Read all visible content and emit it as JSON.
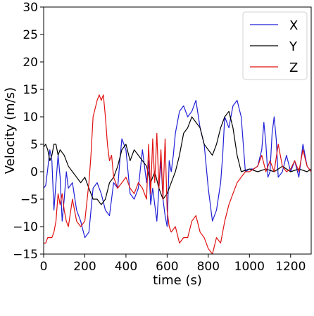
{
  "chart_data": {
    "type": "line",
    "xlabel": "time (s)",
    "ylabel": "Velocity (m/s)",
    "xlim": [
      0,
      1300
    ],
    "ylim": [
      -15,
      30
    ],
    "xticks": [
      0,
      200,
      400,
      600,
      800,
      1000,
      1200
    ],
    "yticks": [
      -15,
      -10,
      -5,
      0,
      5,
      10,
      15,
      20,
      25,
      30
    ],
    "legend_position": "top-right",
    "grid": false,
    "series": [
      {
        "name": "X",
        "color": "#1f1fd6",
        "points": [
          [
            0,
            -3
          ],
          [
            10,
            -2.5
          ],
          [
            20,
            0.5
          ],
          [
            30,
            4
          ],
          [
            40,
            2
          ],
          [
            50,
            -7
          ],
          [
            60,
            -2
          ],
          [
            70,
            3
          ],
          [
            80,
            -1
          ],
          [
            90,
            -9
          ],
          [
            100,
            -5
          ],
          [
            110,
            0
          ],
          [
            120,
            -3
          ],
          [
            140,
            -2
          ],
          [
            160,
            -7
          ],
          [
            180,
            -9
          ],
          [
            200,
            -12
          ],
          [
            220,
            -11
          ],
          [
            240,
            -3
          ],
          [
            260,
            -2
          ],
          [
            280,
            -4
          ],
          [
            300,
            -7
          ],
          [
            320,
            -8
          ],
          [
            340,
            -2
          ],
          [
            360,
            -3
          ],
          [
            370,
            2
          ],
          [
            380,
            6
          ],
          [
            400,
            4
          ],
          [
            420,
            -4
          ],
          [
            440,
            -5
          ],
          [
            460,
            -3
          ],
          [
            480,
            4
          ],
          [
            500,
            -2
          ],
          [
            510,
            2
          ],
          [
            520,
            -6
          ],
          [
            530,
            -3
          ],
          [
            540,
            -6
          ],
          [
            550,
            -9
          ],
          [
            560,
            -3
          ],
          [
            570,
            2
          ],
          [
            580,
            -5
          ],
          [
            590,
            -8
          ],
          [
            600,
            -10
          ],
          [
            610,
            2
          ],
          [
            620,
            0
          ],
          [
            630,
            3
          ],
          [
            640,
            7
          ],
          [
            660,
            11
          ],
          [
            680,
            12
          ],
          [
            700,
            10
          ],
          [
            720,
            11
          ],
          [
            740,
            13
          ],
          [
            760,
            8
          ],
          [
            780,
            5
          ],
          [
            800,
            -3
          ],
          [
            820,
            -9
          ],
          [
            840,
            -7
          ],
          [
            860,
            -2
          ],
          [
            870,
            3
          ],
          [
            880,
            10
          ],
          [
            900,
            8
          ],
          [
            920,
            12
          ],
          [
            940,
            13
          ],
          [
            960,
            10
          ],
          [
            980,
            0
          ],
          [
            1000,
            0.5
          ],
          [
            1020,
            0.5
          ],
          [
            1040,
            1
          ],
          [
            1060,
            4
          ],
          [
            1070,
            9
          ],
          [
            1080,
            5
          ],
          [
            1090,
            -1
          ],
          [
            1100,
            0
          ],
          [
            1110,
            7
          ],
          [
            1120,
            10
          ],
          [
            1130,
            6
          ],
          [
            1140,
            -1
          ],
          [
            1160,
            0
          ],
          [
            1180,
            3
          ],
          [
            1200,
            0
          ],
          [
            1220,
            2
          ],
          [
            1240,
            -1
          ],
          [
            1260,
            5
          ],
          [
            1280,
            1
          ],
          [
            1300,
            0
          ]
        ]
      },
      {
        "name": "Y",
        "color": "#000000",
        "points": [
          [
            0,
            4.5
          ],
          [
            10,
            5
          ],
          [
            20,
            4
          ],
          [
            30,
            2
          ],
          [
            40,
            3
          ],
          [
            50,
            5
          ],
          [
            60,
            5
          ],
          [
            70,
            3
          ],
          [
            80,
            4
          ],
          [
            100,
            3
          ],
          [
            120,
            1
          ],
          [
            140,
            0
          ],
          [
            160,
            -1
          ],
          [
            180,
            -2
          ],
          [
            200,
            -1
          ],
          [
            220,
            -3
          ],
          [
            240,
            -5
          ],
          [
            260,
            -5
          ],
          [
            280,
            -6
          ],
          [
            300,
            -5
          ],
          [
            320,
            -2
          ],
          [
            340,
            -1
          ],
          [
            360,
            1
          ],
          [
            380,
            4
          ],
          [
            400,
            5
          ],
          [
            420,
            2
          ],
          [
            440,
            4
          ],
          [
            460,
            3
          ],
          [
            480,
            2
          ],
          [
            500,
            1
          ],
          [
            520,
            -2
          ],
          [
            540,
            0
          ],
          [
            560,
            -3
          ],
          [
            580,
            -5
          ],
          [
            600,
            -4
          ],
          [
            620,
            -2
          ],
          [
            640,
            0
          ],
          [
            660,
            3
          ],
          [
            680,
            7
          ],
          [
            700,
            8
          ],
          [
            720,
            10
          ],
          [
            740,
            9
          ],
          [
            760,
            8
          ],
          [
            780,
            5
          ],
          [
            800,
            4
          ],
          [
            820,
            3
          ],
          [
            840,
            5
          ],
          [
            860,
            8
          ],
          [
            880,
            10
          ],
          [
            900,
            11
          ],
          [
            920,
            8
          ],
          [
            940,
            3
          ],
          [
            960,
            0
          ],
          [
            1000,
            0.5
          ],
          [
            1040,
            0
          ],
          [
            1080,
            0.5
          ],
          [
            1120,
            0
          ],
          [
            1160,
            1
          ],
          [
            1200,
            0
          ],
          [
            1240,
            0.5
          ],
          [
            1280,
            0
          ],
          [
            1300,
            0.5
          ]
        ]
      },
      {
        "name": "Z",
        "color": "#e01010",
        "points": [
          [
            0,
            -13
          ],
          [
            10,
            -13
          ],
          [
            20,
            -12
          ],
          [
            40,
            -12
          ],
          [
            50,
            -11
          ],
          [
            60,
            -9
          ],
          [
            70,
            -4
          ],
          [
            80,
            -6
          ],
          [
            90,
            -4
          ],
          [
            100,
            -7
          ],
          [
            110,
            -9
          ],
          [
            120,
            -10
          ],
          [
            140,
            -5
          ],
          [
            160,
            -9
          ],
          [
            180,
            -10
          ],
          [
            200,
            -9
          ],
          [
            220,
            -2
          ],
          [
            230,
            3
          ],
          [
            240,
            10
          ],
          [
            260,
            13
          ],
          [
            270,
            14
          ],
          [
            280,
            13
          ],
          [
            290,
            14
          ],
          [
            300,
            10
          ],
          [
            310,
            5
          ],
          [
            320,
            2
          ],
          [
            330,
            3
          ],
          [
            340,
            -1
          ],
          [
            360,
            -3
          ],
          [
            380,
            -2
          ],
          [
            400,
            -1
          ],
          [
            420,
            -3
          ],
          [
            440,
            -4
          ],
          [
            460,
            -2
          ],
          [
            480,
            -3
          ],
          [
            500,
            -5
          ],
          [
            510,
            5
          ],
          [
            520,
            -4
          ],
          [
            530,
            6
          ],
          [
            540,
            -2
          ],
          [
            550,
            7
          ],
          [
            560,
            -3
          ],
          [
            570,
            4
          ],
          [
            580,
            -5
          ],
          [
            590,
            6
          ],
          [
            600,
            -7
          ],
          [
            610,
            -10
          ],
          [
            620,
            -11
          ],
          [
            640,
            -10
          ],
          [
            660,
            -13
          ],
          [
            680,
            -12
          ],
          [
            700,
            -12
          ],
          [
            720,
            -9
          ],
          [
            740,
            -8
          ],
          [
            760,
            -11
          ],
          [
            780,
            -12
          ],
          [
            800,
            -14
          ],
          [
            820,
            -15
          ],
          [
            840,
            -12
          ],
          [
            860,
            -13
          ],
          [
            880,
            -9
          ],
          [
            900,
            -6
          ],
          [
            920,
            -4
          ],
          [
            940,
            -2
          ],
          [
            960,
            -1
          ],
          [
            980,
            0
          ],
          [
            1000,
            0
          ],
          [
            1020,
            0.5
          ],
          [
            1040,
            1
          ],
          [
            1060,
            3
          ],
          [
            1080,
            0
          ],
          [
            1100,
            2
          ],
          [
            1120,
            0
          ],
          [
            1140,
            5
          ],
          [
            1160,
            1
          ],
          [
            1180,
            0
          ],
          [
            1200,
            0.5
          ],
          [
            1220,
            2
          ],
          [
            1240,
            0
          ],
          [
            1260,
            4
          ],
          [
            1280,
            1
          ],
          [
            1300,
            0
          ]
        ]
      }
    ]
  }
}
